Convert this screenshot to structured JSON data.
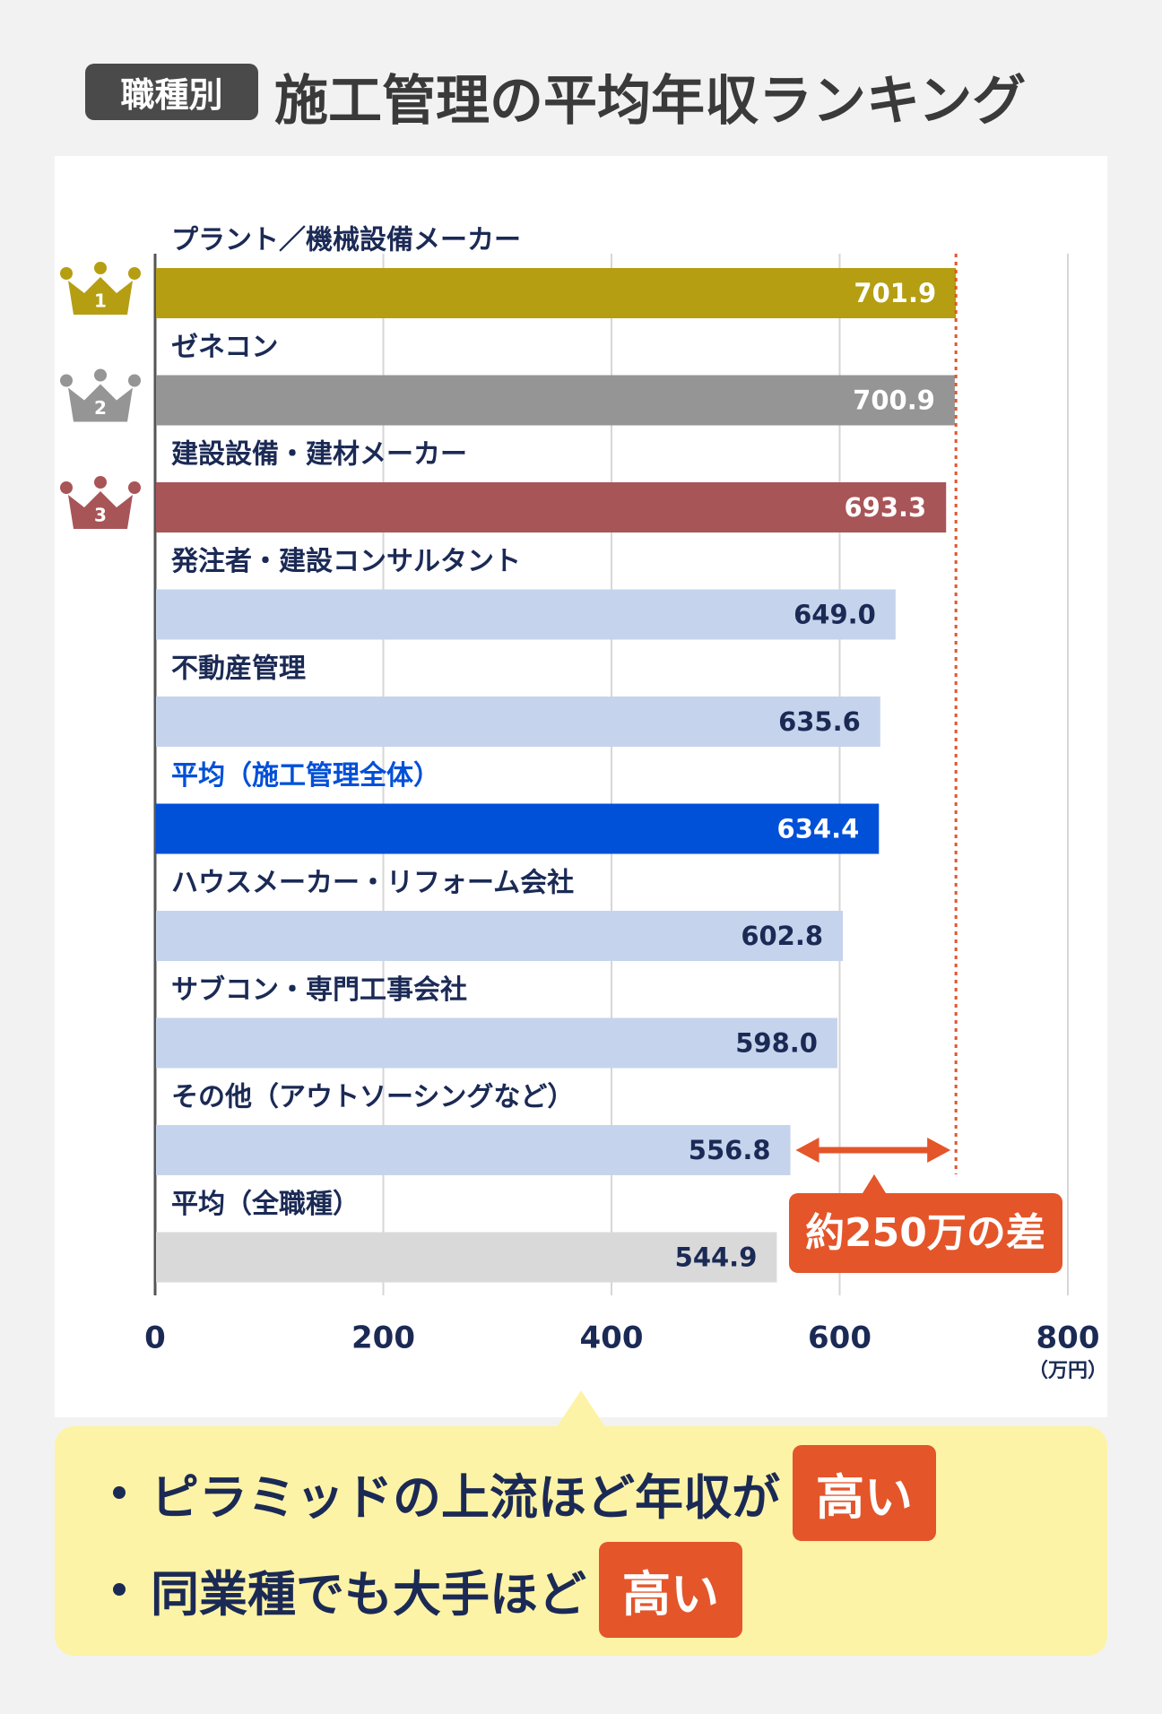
{
  "header": {
    "badge": "職種別",
    "title": "施工管理の平均年収ランキング"
  },
  "chart_data": {
    "type": "bar",
    "orientation": "horizontal",
    "categories": [
      "プラント／機械設備メーカー",
      "ゼネコン",
      "建設設備・建材メーカー",
      "発注者・建設コンサルタント",
      "不動産管理",
      "平均（施工管理全体）",
      "ハウスメーカー・リフォーム会社",
      "サブコン・専門工事会社",
      "その他（アウトソーシングなど）",
      "平均（全職種）"
    ],
    "values": [
      701.9,
      700.9,
      693.3,
      649.0,
      635.6,
      634.4,
      602.8,
      598.0,
      556.8,
      544.9
    ],
    "value_labels": [
      "701.9",
      "700.9",
      "693.3",
      "649.0",
      "635.6",
      "634.4",
      "602.8",
      "598.0",
      "556.8",
      "544.9"
    ],
    "colors": [
      "#b59e12",
      "#959595",
      "#a85558",
      "#c5d4ec",
      "#c5d4ec",
      "#0050d8",
      "#c5d4ec",
      "#c5d4ec",
      "#c5d4ec",
      "#d9d9d9"
    ],
    "label_colors": [
      "#1b2a55",
      "#1b2a55",
      "#1b2a55",
      "#1b2a55",
      "#1b2a55",
      "#0050d8",
      "#1b2a55",
      "#1b2a55",
      "#1b2a55",
      "#1b2a55"
    ],
    "ranks": [
      "1",
      "2",
      "3"
    ],
    "xlim": [
      0,
      800
    ],
    "xticks": [
      0,
      200,
      400,
      600,
      800
    ],
    "x_unit": "（万円）",
    "grid": true,
    "annotation": "約250万の差"
  },
  "notes": [
    {
      "text": "ピラミッドの上流ほど年収が",
      "highlight": "高い"
    },
    {
      "text": "同業種でも大手ほど",
      "highlight": "高い"
    }
  ]
}
